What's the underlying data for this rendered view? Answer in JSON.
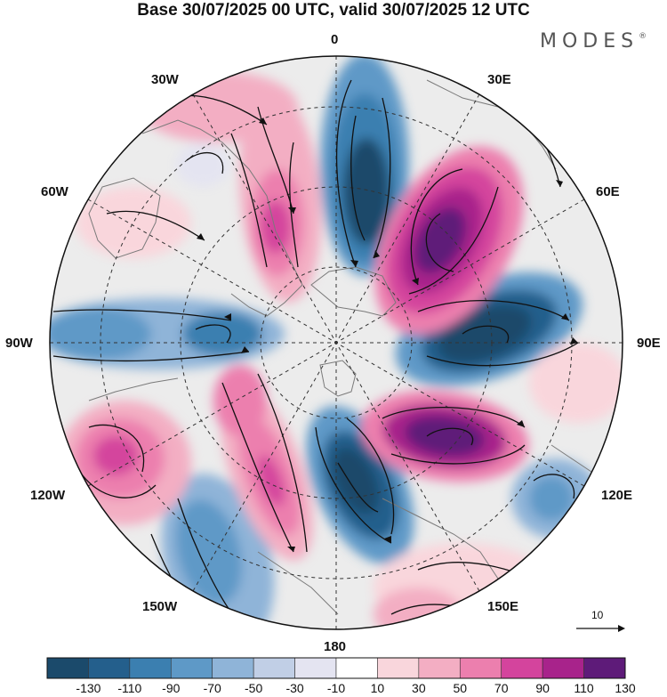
{
  "title": "Base 30/07/2025 00 UTC, valid 30/07/2025 12 UTC",
  "brand": "MODES",
  "brand_mark": "®",
  "longitude_labels": {
    "top": "0",
    "top_right": "30E",
    "right_upper": "60E",
    "right": "90E",
    "right_lower": "120E",
    "bottom_right": "150E",
    "bottom": "180",
    "bottom_left": "150W",
    "left_lower": "120W",
    "left": "90W",
    "left_upper": "60W",
    "top_left": "30W"
  },
  "vector_scale_label": "10",
  "colorbar": {
    "ticks": [
      "-130",
      "-110",
      "-90",
      "-70",
      "-50",
      "-30",
      "-10",
      "10",
      "30",
      "50",
      "70",
      "90",
      "110",
      "130"
    ],
    "colors": [
      "#1b4a6b",
      "#245f8c",
      "#3b7fb0",
      "#5e99c7",
      "#8fb4d8",
      "#c1cfe6",
      "#e4e4f1",
      "#ffffff",
      "#f9d6dc",
      "#f3aec3",
      "#ec7fae",
      "#d4449d",
      "#a8238b",
      "#5e1b79"
    ]
  },
  "map_colors": {
    "neutral": "#ececec",
    "coast": "#777777"
  }
}
